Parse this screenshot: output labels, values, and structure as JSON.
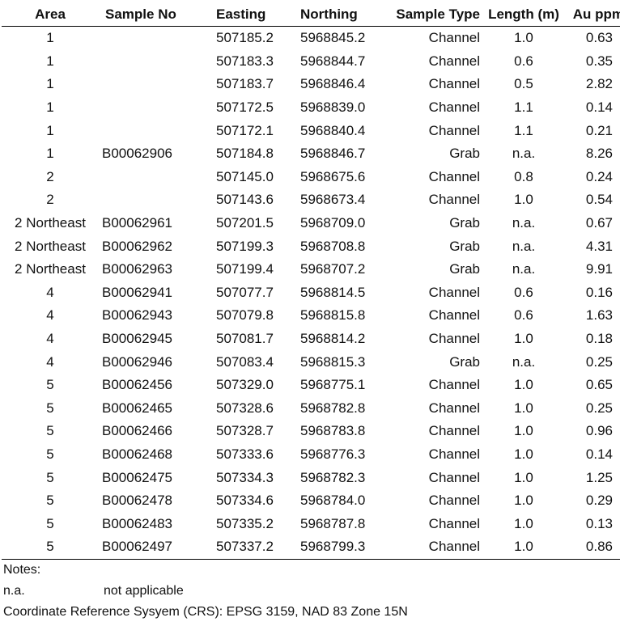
{
  "table": {
    "headers": {
      "area": "Area",
      "sample_no": "Sample No",
      "easting": "Easting",
      "northing": "Northing",
      "sample_type": "Sample Type",
      "length": "Length (m)",
      "au": "Au ppm"
    },
    "rows": [
      {
        "area": "1",
        "sample_no": "",
        "easting": "507185.2",
        "northing": "5968845.2",
        "sample_type": "Channel",
        "length": "1.0",
        "au": "0.63"
      },
      {
        "area": "1",
        "sample_no": "",
        "easting": "507183.3",
        "northing": "5968844.7",
        "sample_type": "Channel",
        "length": "0.6",
        "au": "0.35"
      },
      {
        "area": "1",
        "sample_no": "",
        "easting": "507183.7",
        "northing": "5968846.4",
        "sample_type": "Channel",
        "length": "0.5",
        "au": "2.82"
      },
      {
        "area": "1",
        "sample_no": "",
        "easting": "507172.5",
        "northing": "5968839.0",
        "sample_type": "Channel",
        "length": "1.1",
        "au": "0.14"
      },
      {
        "area": "1",
        "sample_no": "",
        "easting": "507172.1",
        "northing": "5968840.4",
        "sample_type": "Channel",
        "length": "1.1",
        "au": "0.21"
      },
      {
        "area": "1",
        "sample_no": "B00062906",
        "easting": "507184.8",
        "northing": "5968846.7",
        "sample_type": "Grab",
        "length": "n.a.",
        "au": "8.26"
      },
      {
        "area": "2",
        "sample_no": "",
        "easting": "507145.0",
        "northing": "5968675.6",
        "sample_type": "Channel",
        "length": "0.8",
        "au": "0.24"
      },
      {
        "area": "2",
        "sample_no": "",
        "easting": "507143.6",
        "northing": "5968673.4",
        "sample_type": "Channel",
        "length": "1.0",
        "au": "0.54"
      },
      {
        "area": "2 Northeast",
        "sample_no": "B00062961",
        "easting": "507201.5",
        "northing": "5968709.0",
        "sample_type": "Grab",
        "length": "n.a.",
        "au": "0.67"
      },
      {
        "area": "2 Northeast",
        "sample_no": "B00062962",
        "easting": "507199.3",
        "northing": "5968708.8",
        "sample_type": "Grab",
        "length": "n.a.",
        "au": "4.31"
      },
      {
        "area": "2 Northeast",
        "sample_no": "B00062963",
        "easting": "507199.4",
        "northing": "5968707.2",
        "sample_type": "Grab",
        "length": "n.a.",
        "au": "9.91"
      },
      {
        "area": "4",
        "sample_no": "B00062941",
        "easting": "507077.7",
        "northing": "5968814.5",
        "sample_type": "Channel",
        "length": "0.6",
        "au": "0.16"
      },
      {
        "area": "4",
        "sample_no": "B00062943",
        "easting": "507079.8",
        "northing": "5968815.8",
        "sample_type": "Channel",
        "length": "0.6",
        "au": "1.63"
      },
      {
        "area": "4",
        "sample_no": "B00062945",
        "easting": "507081.7",
        "northing": "5968814.2",
        "sample_type": "Channel",
        "length": "1.0",
        "au": "0.18"
      },
      {
        "area": "4",
        "sample_no": "B00062946",
        "easting": "507083.4",
        "northing": "5968815.3",
        "sample_type": "Grab",
        "length": "n.a.",
        "au": "0.25"
      },
      {
        "area": "5",
        "sample_no": "B00062456",
        "easting": "507329.0",
        "northing": "5968775.1",
        "sample_type": "Channel",
        "length": "1.0",
        "au": "0.65"
      },
      {
        "area": "5",
        "sample_no": "B00062465",
        "easting": "507328.6",
        "northing": "5968782.8",
        "sample_type": "Channel",
        "length": "1.0",
        "au": "0.25"
      },
      {
        "area": "5",
        "sample_no": "B00062466",
        "easting": "507328.7",
        "northing": "5968783.8",
        "sample_type": "Channel",
        "length": "1.0",
        "au": "0.96"
      },
      {
        "area": "5",
        "sample_no": "B00062468",
        "easting": "507333.6",
        "northing": "5968776.3",
        "sample_type": "Channel",
        "length": "1.0",
        "au": "0.14"
      },
      {
        "area": "5",
        "sample_no": "B00062475",
        "easting": "507334.3",
        "northing": "5968782.3",
        "sample_type": "Channel",
        "length": "1.0",
        "au": "1.25"
      },
      {
        "area": "5",
        "sample_no": "B00062478",
        "easting": "507334.6",
        "northing": "5968784.0",
        "sample_type": "Channel",
        "length": "1.0",
        "au": "0.29"
      },
      {
        "area": "5",
        "sample_no": "B00062483",
        "easting": "507335.2",
        "northing": "5968787.8",
        "sample_type": "Channel",
        "length": "1.0",
        "au": "0.13"
      },
      {
        "area": "5",
        "sample_no": "B00062497",
        "easting": "507337.2",
        "northing": "5968799.3",
        "sample_type": "Channel",
        "length": "1.0",
        "au": "0.86"
      }
    ]
  },
  "notes": {
    "heading": "Notes:",
    "abbreviation": "n.a.",
    "abbreviation_meaning": "not applicable",
    "crs": "Coordinate Reference Sysyem (CRS): EPSG 3159, NAD 83 Zone 15N"
  }
}
